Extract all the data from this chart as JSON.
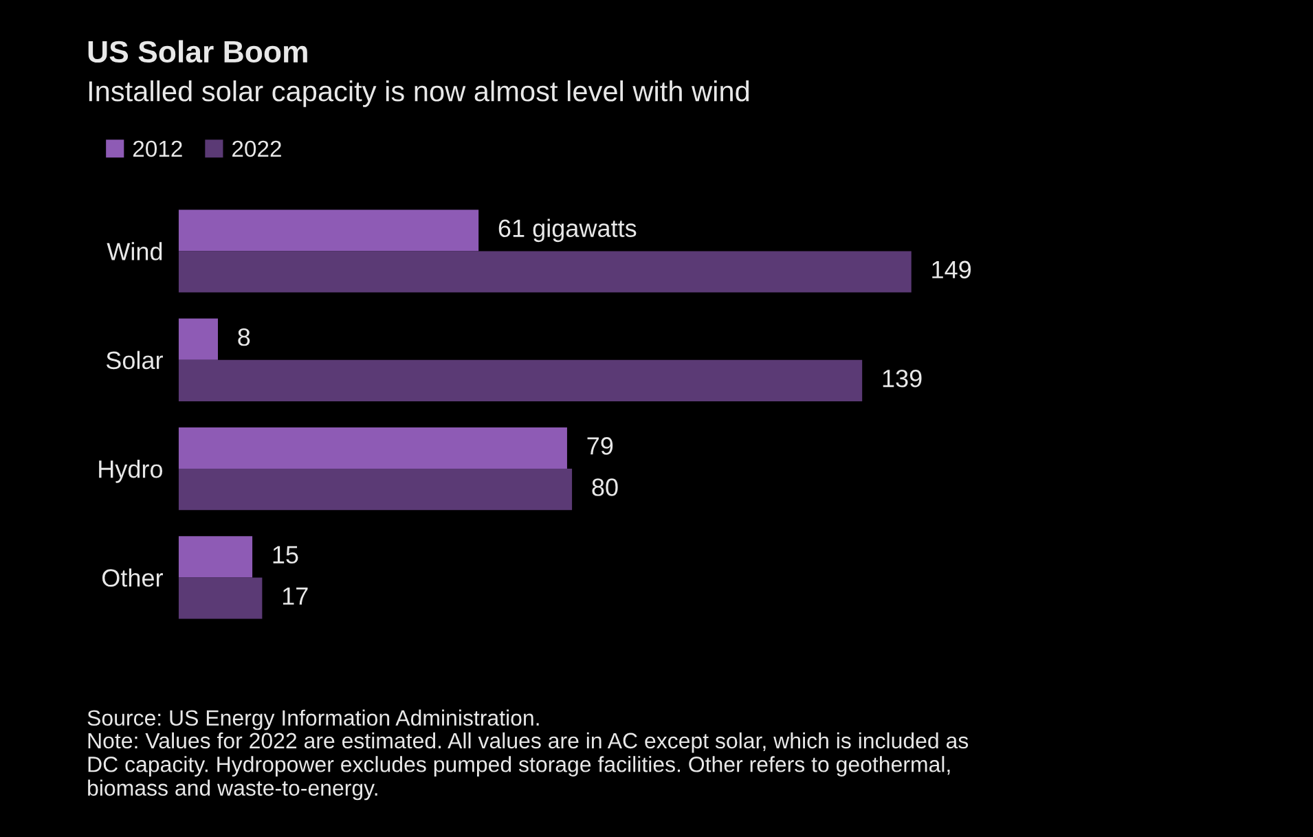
{
  "chart_data": {
    "type": "bar",
    "orientation": "horizontal",
    "title": "US Solar Boom",
    "subtitle": "Installed solar capacity is now almost level with wind",
    "categories": [
      "Wind",
      "Solar",
      "Hydro",
      "Other"
    ],
    "series": [
      {
        "name": "2012",
        "color": "#8e5bb5",
        "values": [
          61,
          8,
          79,
          15
        ],
        "value_labels": [
          "61 gigawatts",
          "8",
          "79",
          "15"
        ]
      },
      {
        "name": "2022",
        "color": "#5b3a75",
        "values": [
          149,
          139,
          80,
          17
        ],
        "value_labels": [
          "149",
          "139",
          "80",
          "17"
        ]
      }
    ],
    "tick_labels": "y",
    "grid": false,
    "legend": "top left",
    "annotations": [
      "Source: US Energy Information Administration.",
      "Note: Values for 2022 are estimated. All values are in AC except solar, which is included as DC capacity. Hydropower excludes pumped storage facilities. Other refers to geothermal, biomass and waste-to-energy."
    ]
  }
}
